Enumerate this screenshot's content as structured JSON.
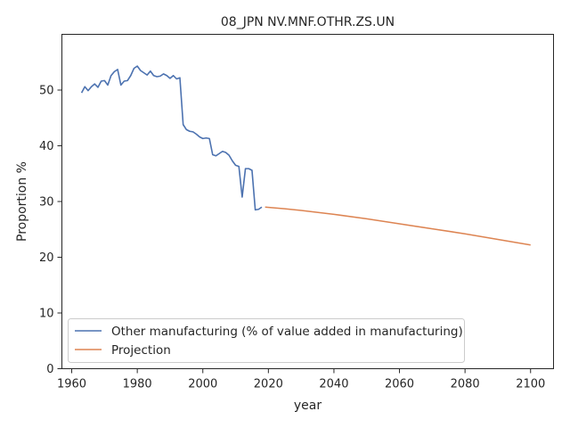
{
  "chart_data": {
    "type": "line",
    "title": "08_JPN NV.MNF.OTHR.ZS.UN",
    "xlabel": "year",
    "ylabel": "Proportion %",
    "xlim": [
      1957,
      2107
    ],
    "ylim": [
      0,
      60
    ],
    "xticks": [
      1960,
      1980,
      2000,
      2020,
      2040,
      2060,
      2080,
      2100
    ],
    "yticks": [
      0,
      10,
      20,
      30,
      40,
      50
    ],
    "grid": false,
    "legend_position": "lower-left",
    "series": [
      {
        "name": "Other manufacturing (% of value added in manufacturing)",
        "color": "#4c72b0",
        "x": [
          1963,
          1964,
          1965,
          1966,
          1967,
          1968,
          1969,
          1970,
          1971,
          1972,
          1973,
          1974,
          1975,
          1976,
          1977,
          1978,
          1979,
          1980,
          1981,
          1982,
          1983,
          1984,
          1985,
          1986,
          1987,
          1988,
          1989,
          1990,
          1991,
          1992,
          1993,
          1994,
          1995,
          1996,
          1997,
          1998,
          1999,
          2000,
          2001,
          2002,
          2003,
          2004,
          2005,
          2006,
          2007,
          2008,
          2009,
          2010,
          2011,
          2012,
          2013,
          2014,
          2015,
          2016,
          2017,
          2018
        ],
        "y": [
          49.5,
          50.6,
          49.9,
          50.6,
          51.1,
          50.5,
          51.6,
          51.7,
          50.9,
          52.6,
          53.3,
          53.7,
          50.9,
          51.6,
          51.7,
          52.6,
          53.9,
          54.3,
          53.5,
          53.1,
          52.7,
          53.4,
          52.6,
          52.4,
          52.5,
          52.9,
          52.6,
          52.1,
          52.6,
          52.0,
          52.2,
          43.8,
          42.9,
          42.6,
          42.5,
          42.1,
          41.6,
          41.3,
          41.4,
          41.3,
          38.4,
          38.2,
          38.6,
          39.0,
          38.8,
          38.3,
          37.3,
          36.5,
          36.3,
          30.8,
          35.9,
          35.9,
          35.6,
          28.5,
          28.6,
          29.0
        ]
      },
      {
        "name": "Projection",
        "color": "#dd8452",
        "x": [
          2019,
          2025,
          2030,
          2040,
          2050,
          2060,
          2070,
          2080,
          2090,
          2100
        ],
        "y": [
          29.0,
          28.7,
          28.4,
          27.7,
          26.9,
          26.0,
          25.1,
          24.2,
          23.2,
          22.2
        ]
      }
    ]
  }
}
